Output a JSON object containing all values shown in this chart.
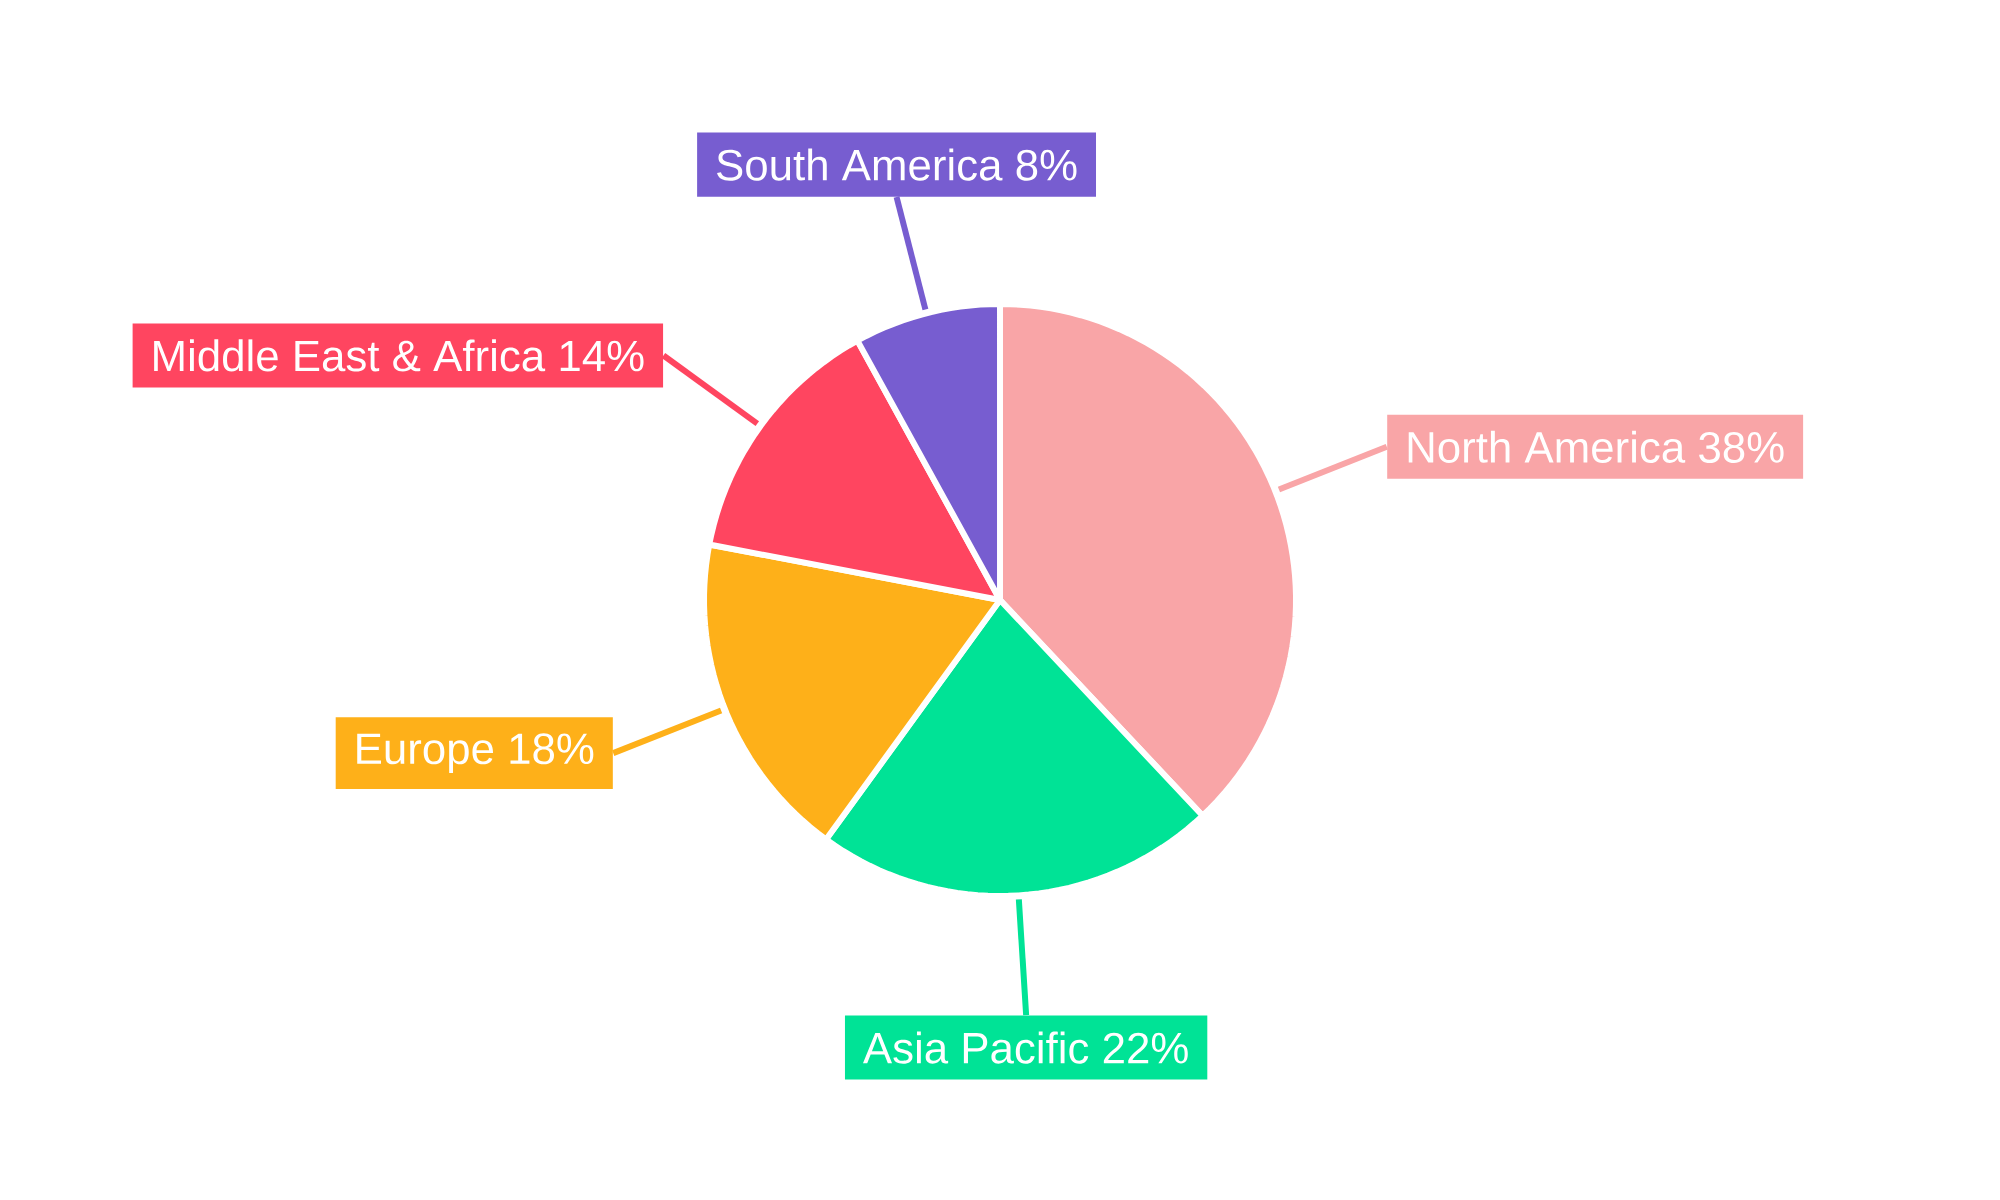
{
  "chart_data": {
    "type": "pie",
    "categories": [
      "North America",
      "Asia Pacific",
      "Europe",
      "Middle East & Africa",
      "South America"
    ],
    "values": [
      38,
      22,
      18,
      14,
      8
    ],
    "value_labels": [
      "38%",
      "22%",
      "18%",
      "14%",
      "8%"
    ],
    "colors": [
      "#f9a5a7",
      "#00e396",
      "#feb019",
      "#ff4560",
      "#775dd0"
    ]
  }
}
